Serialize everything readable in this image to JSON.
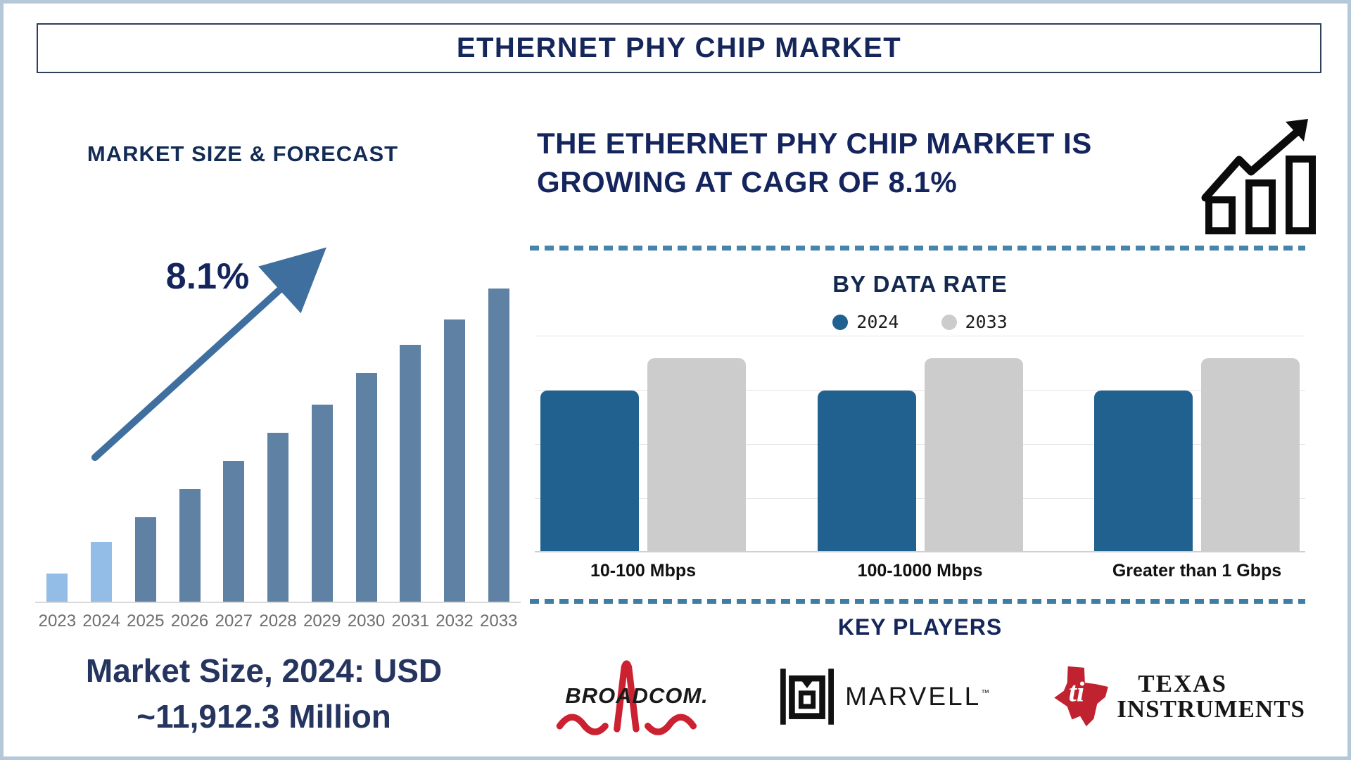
{
  "page": {
    "title": "ETHERNET PHY CHIP MARKET"
  },
  "colors": {
    "navy_text": "#14245c",
    "forecast_bar_highlight": "#93bce6",
    "forecast_bar_default": "#5e81a4",
    "trend_arrow": "#3f6f9e",
    "data_rate_2024": "#20618f",
    "data_rate_2033": "#cccccc",
    "dashed_divider": "#4684ab",
    "broadcom_red": "#cc2131",
    "ti_red": "#c0232f",
    "frame_border": "#b5c8da"
  },
  "left_panel": {
    "section_title": "MARKET SIZE & FORECAST",
    "market_size_line1": "Market Size, 2024: USD",
    "market_size_line2": "~11,912.3 Million"
  },
  "right_panel": {
    "headline_line1": "THE ETHERNET PHY CHIP MARKET IS",
    "headline_line2": "GROWING AT CAGR OF 8.1%",
    "key_players_title": "KEY PLAYERS"
  },
  "logos": {
    "broadcom": {
      "text": "BROADCOM."
    },
    "marvell": {
      "text": "MARVELL",
      "tm": "™"
    },
    "ti": {
      "line1": "TEXAS",
      "line2": "INSTRUMENTS"
    }
  },
  "chart_data": [
    {
      "type": "bar",
      "title": "MARKET SIZE & FORECAST",
      "categories": [
        "2023",
        "2024",
        "2025",
        "2026",
        "2027",
        "2028",
        "2029",
        "2030",
        "2031",
        "2032",
        "2033"
      ],
      "values_relative": [
        0.09,
        0.19,
        0.27,
        0.36,
        0.45,
        0.54,
        0.63,
        0.73,
        0.82,
        0.9,
        1.0
      ],
      "annotation": "8.1%",
      "trend_arrow": true,
      "highlight_count": 2,
      "colors": {
        "highlight": "#93bce6",
        "default": "#5e81a4",
        "arrow": "#3f6f9e"
      },
      "xlabel": "",
      "ylabel": "",
      "grid": false,
      "note": "bar heights relative to tallest bar (no y-axis shown); 2024 value labeled below chart as USD ~11,912.3 Million; CAGR 8.1%"
    },
    {
      "type": "bar",
      "title": "BY DATA RATE",
      "categories": [
        "10-100 Mbps",
        "100-1000 Mbps",
        "Greater than 1 Gbps"
      ],
      "series": [
        {
          "name": "2024",
          "color": "#20618f",
          "values_relative": [
            0.74,
            0.74,
            0.74
          ]
        },
        {
          "name": "2033",
          "color": "#cccccc",
          "values_relative": [
            0.89,
            0.89,
            0.89
          ]
        }
      ],
      "legend_position": "top",
      "grid": true,
      "xlabel": "",
      "ylabel": "",
      "note": "bar heights relative to plot height (no y-axis shown)"
    }
  ]
}
